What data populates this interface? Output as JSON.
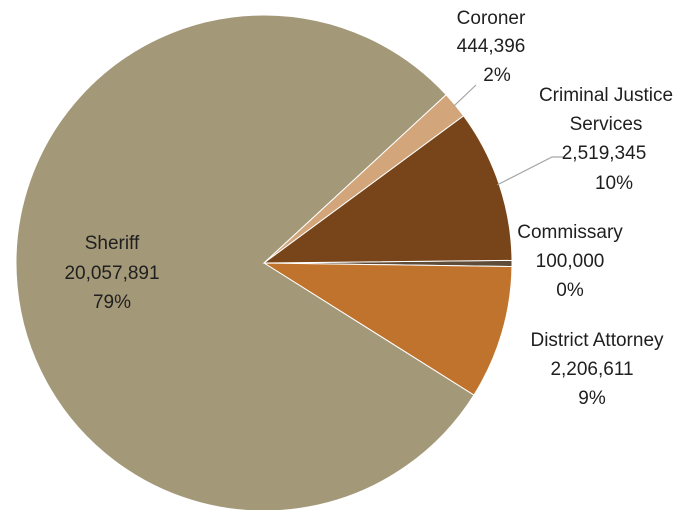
{
  "chart_data": {
    "type": "pie",
    "title": "",
    "slices": [
      {
        "label": "Commissary",
        "value": 100000,
        "value_label": "100,000",
        "percent_label": "0%",
        "color": "#5e4b38"
      },
      {
        "label": "District Attorney",
        "value": 2206611,
        "value_label": "2,206,611",
        "percent_label": "9%",
        "color": "#c0732c"
      },
      {
        "label": "Sheriff",
        "value": 20057891,
        "value_label": "20,057,891",
        "percent_label": "79%",
        "color": "#a39878"
      },
      {
        "label": "Coroner",
        "value": 444396,
        "value_label": "444,396",
        "percent_label": "2%",
        "color": "#d2a57a"
      },
      {
        "label": "Criminal Justice Services",
        "label_lines": [
          "Criminal Justice",
          "Services"
        ],
        "value": 2519345,
        "value_label": "2,519,345",
        "percent_label": "10%",
        "color": "#774519"
      }
    ]
  }
}
